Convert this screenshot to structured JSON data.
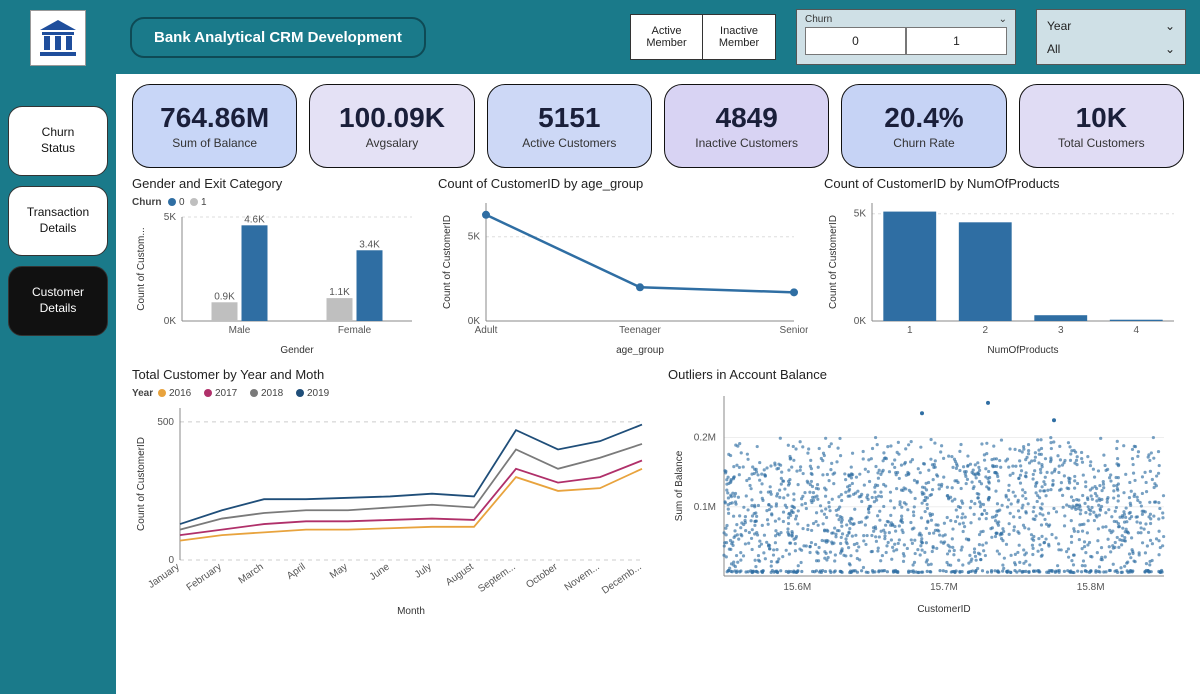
{
  "app": {
    "title": "Bank Analytical CRM Development"
  },
  "nav": {
    "items": [
      {
        "label": "Churn\nStatus",
        "variant": "light"
      },
      {
        "label": "Transaction\nDetails",
        "variant": "light"
      },
      {
        "label": "Customer\nDetails",
        "variant": "dark"
      }
    ]
  },
  "slicers": {
    "member": {
      "options": [
        "Active\nMember",
        "Inactive\nMember"
      ]
    },
    "churn": {
      "label": "Churn",
      "options": [
        "0",
        "1"
      ]
    },
    "year": {
      "label": "Year",
      "value": "All"
    }
  },
  "kpis": [
    {
      "value": "764.86M",
      "label": "Sum of Balance",
      "bg": "#c8d6f7"
    },
    {
      "value": "100.09K",
      "label": "Avgsalary",
      "bg": "#e4e1f5"
    },
    {
      "value": "5151",
      "label": "Active Customers",
      "bg": "#cdd8f6"
    },
    {
      "value": "4849",
      "label": "Inactive Customers",
      "bg": "#d8d3f3"
    },
    {
      "value": "20.4%",
      "label": "Churn Rate",
      "bg": "#c6d3f5"
    },
    {
      "value": "10K",
      "label": "Total Customers",
      "bg": "#e0dcf4"
    }
  ],
  "gender_chart": {
    "title": "Gender and Exit Category",
    "legend_title": "Churn",
    "series": [
      "0",
      "1"
    ],
    "series_colors": [
      "#2f6ea3",
      "#bfbfbf"
    ],
    "categories": [
      "Male",
      "Female"
    ],
    "data": {
      "Male": {
        "churn1": 0.9,
        "churn0": 4.6
      },
      "Female": {
        "churn1": 1.1,
        "churn0": 3.4
      }
    },
    "labels": {
      "Male": [
        "0.9K",
        "4.6K"
      ],
      "Female": [
        "1.1K",
        "3.4K"
      ]
    },
    "y_ticks": [
      "0K",
      "5K"
    ],
    "y_max": 5,
    "x_axis": "Gender",
    "y_axis": "Count of Custom..."
  },
  "age_chart": {
    "title": "Count of CustomerID by age_group",
    "categories": [
      "Adult",
      "Teenager",
      "Senior"
    ],
    "values": [
      6300,
      2000,
      1700
    ],
    "y_ticks": [
      "0K",
      "5K"
    ],
    "y_max": 7000,
    "line_color": "#2f6ea3",
    "x_axis": "age_group",
    "y_axis": "Count of CustomerID"
  },
  "products_chart": {
    "title": "Count of CustomerID by NumOfProducts",
    "categories": [
      "1",
      "2",
      "3",
      "4"
    ],
    "values": [
      5100,
      4600,
      270,
      60
    ],
    "y_ticks": [
      "0K",
      "5K"
    ],
    "y_max": 5500,
    "bar_color": "#2f6ea3",
    "x_axis": "NumOfProducts",
    "y_axis": "Count of CustomerID"
  },
  "monthly_chart": {
    "title": "Total Customer by Year and Moth",
    "legend_title": "Year",
    "months": [
      "January",
      "February",
      "March",
      "April",
      "May",
      "June",
      "July",
      "August",
      "Septem...",
      "October",
      "Novem...",
      "Decemb..."
    ],
    "y_ticks": [
      "0",
      "500"
    ],
    "y_max": 550,
    "series": [
      {
        "name": "2016",
        "color": "#e8a33d",
        "values": [
          70,
          90,
          100,
          110,
          110,
          115,
          120,
          120,
          300,
          250,
          260,
          330
        ]
      },
      {
        "name": "2017",
        "color": "#b0306a",
        "values": [
          90,
          110,
          130,
          140,
          140,
          145,
          150,
          145,
          330,
          280,
          300,
          360
        ]
      },
      {
        "name": "2018",
        "color": "#7a7a7a",
        "values": [
          110,
          150,
          170,
          180,
          180,
          190,
          200,
          190,
          400,
          330,
          370,
          420
        ]
      },
      {
        "name": "2019",
        "color": "#1f4e79",
        "values": [
          130,
          180,
          220,
          220,
          225,
          230,
          240,
          230,
          470,
          400,
          430,
          490
        ]
      }
    ],
    "x_axis": "Month",
    "y_axis": "Count of CustomerID"
  },
  "outliers_chart": {
    "title": "Outliers in Account Balance",
    "x_ticks": [
      "15.6M",
      "15.7M",
      "15.8M"
    ],
    "y_ticks": [
      "0.1M",
      "0.2M"
    ],
    "x_range": [
      15.55,
      15.85
    ],
    "y_range": [
      0,
      0.26
    ],
    "band": {
      "y_low": 0.03,
      "y_high": 0.17
    },
    "baseline_y": 0.005,
    "top_outliers_y": [
      0.235,
      0.25,
      0.225
    ],
    "dot_color": "#2f6ea3",
    "x_axis": "CustomerID",
    "y_axis": "Sum of Balance"
  },
  "colors": {
    "teal": "#1a7a8a"
  }
}
